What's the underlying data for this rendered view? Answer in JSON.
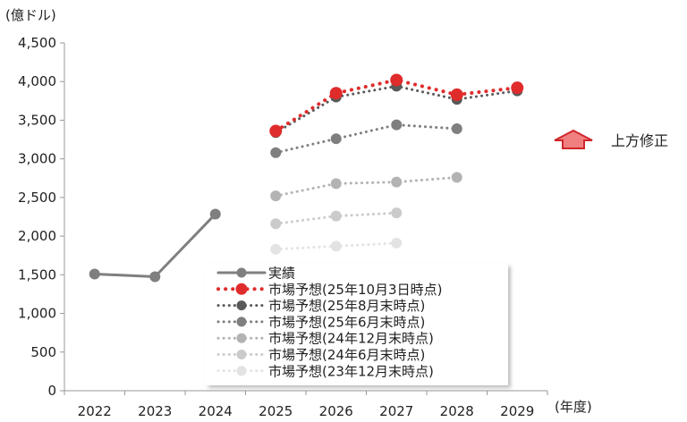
{
  "chart_data": {
    "type": "line",
    "title": "",
    "ylabel": "(億ドル)",
    "xlabel": "(年度)",
    "ylim": [
      0,
      4500
    ],
    "y_ticks": [
      0,
      500,
      1000,
      1500,
      2000,
      2500,
      3000,
      3500,
      4000,
      4500
    ],
    "y_tick_labels": [
      "0",
      "500",
      "1,000",
      "1,500",
      "2,000",
      "2,500",
      "3,000",
      "3,500",
      "4,000",
      "4,500"
    ],
    "categories": [
      "2022",
      "2023",
      "2024",
      "2025",
      "2026",
      "2027",
      "2028",
      "2029"
    ],
    "grid": false,
    "legend_position": "bottom-center",
    "series": [
      {
        "name": "実績",
        "style": "solid",
        "color": "#7f7f7f",
        "values": [
          1510,
          1475,
          2285,
          null,
          null,
          null,
          null,
          null
        ]
      },
      {
        "name": "市場予想(25年10月3日時点)",
        "style": "dotted",
        "color": "#e02b2b",
        "values": [
          null,
          null,
          null,
          3360,
          3850,
          4020,
          3830,
          3920
        ]
      },
      {
        "name": "市場予想(25年8月末時点)",
        "style": "dotted",
        "color": "#595959",
        "values": [
          null,
          null,
          null,
          3340,
          3800,
          3940,
          3770,
          3880
        ]
      },
      {
        "name": "市場予想(25年6月末時点)",
        "style": "dotted",
        "color": "#7f7f7f",
        "values": [
          null,
          null,
          null,
          3080,
          3260,
          3440,
          3390,
          null
        ]
      },
      {
        "name": "市場予想(24年12月末時点)",
        "style": "dotted",
        "color": "#b3b3b3",
        "values": [
          null,
          null,
          null,
          2520,
          2680,
          2700,
          2760,
          null
        ]
      },
      {
        "name": "市場予想(24年6月末時点)",
        "style": "dotted",
        "color": "#cbcbcb",
        "values": [
          null,
          null,
          null,
          2160,
          2260,
          2300,
          null,
          null
        ]
      },
      {
        "name": "市場予想(23年12月末時点)",
        "style": "dotted",
        "color": "#e3e3e3",
        "values": [
          null,
          null,
          null,
          1830,
          1870,
          1910,
          null,
          null
        ]
      }
    ],
    "annotation": {
      "text": "上方修正",
      "color": "#e02b2b"
    }
  }
}
